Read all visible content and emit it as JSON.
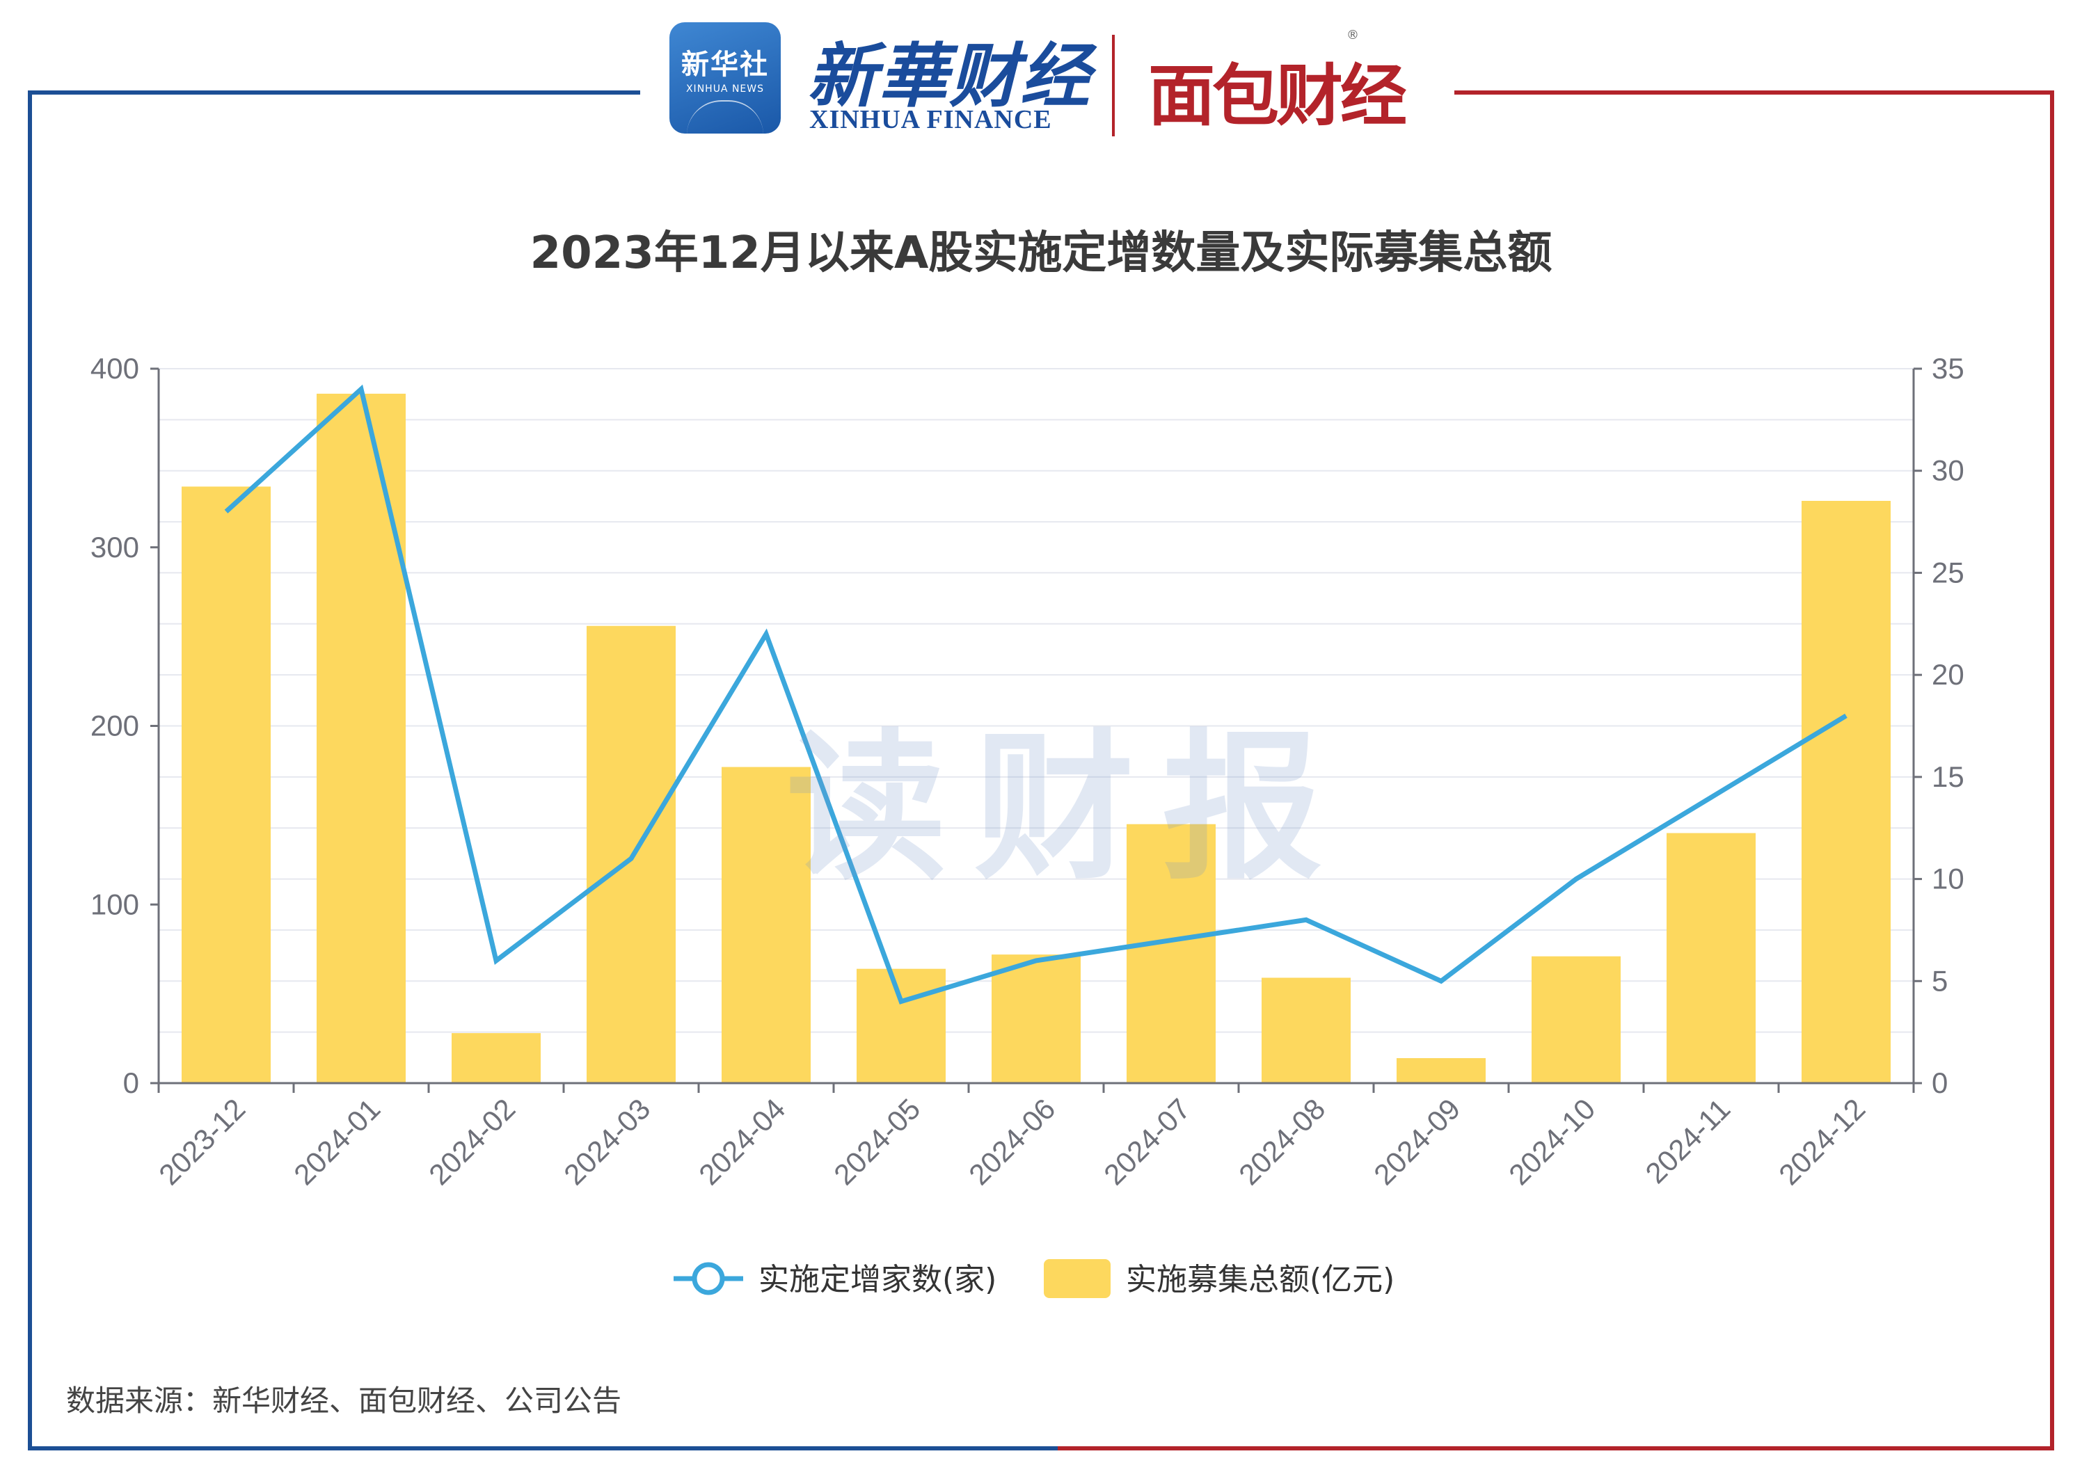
{
  "header": {
    "xinhua_logo_cn": "新华社",
    "xinhua_logo_en": "XINHUA NEWS",
    "xinhua_finance_cn": "新華财经",
    "xinhua_finance_en": "XINHUA FINANCE",
    "mianbao_logo": "面包财经",
    "registered_mark": "®"
  },
  "watermark": "读财报",
  "source": "数据来源：新华财经、面包财经、公司公告",
  "colors": {
    "bar": "#fdd85e",
    "line": "#3ba7dc",
    "frame_left": "#1c4f95",
    "frame_right": "#b3232a"
  },
  "chart_data": {
    "type": "bar",
    "title": "2023年12月以来A股实施定增数量及实际募集总额",
    "categories": [
      "2023-12",
      "2024-01",
      "2024-02",
      "2024-03",
      "2024-04",
      "2024-05",
      "2024-06",
      "2024-07",
      "2024-08",
      "2024-09",
      "2024-10",
      "2024-11",
      "2024-12"
    ],
    "series": [
      {
        "name": "实施定增家数(家)",
        "type": "line",
        "axis": "right",
        "values": [
          28,
          34,
          6,
          11,
          22,
          4,
          6,
          7,
          8,
          5,
          10,
          14,
          18
        ]
      },
      {
        "name": "实施募集总额(亿元)",
        "type": "bar",
        "axis": "left",
        "values": [
          334,
          386,
          28,
          256,
          177,
          64,
          72,
          145,
          59,
          14,
          71,
          140,
          326
        ]
      }
    ],
    "left_axis": {
      "ylim": [
        0,
        400
      ],
      "ticks": [
        "0",
        "100",
        "200",
        "300",
        "400"
      ]
    },
    "right_axis": {
      "ylim": [
        0,
        35
      ],
      "ticks": [
        "0",
        "5",
        "10",
        "15",
        "20",
        "25",
        "30",
        "35"
      ]
    },
    "legend_position": "bottom-center",
    "grid": true
  }
}
